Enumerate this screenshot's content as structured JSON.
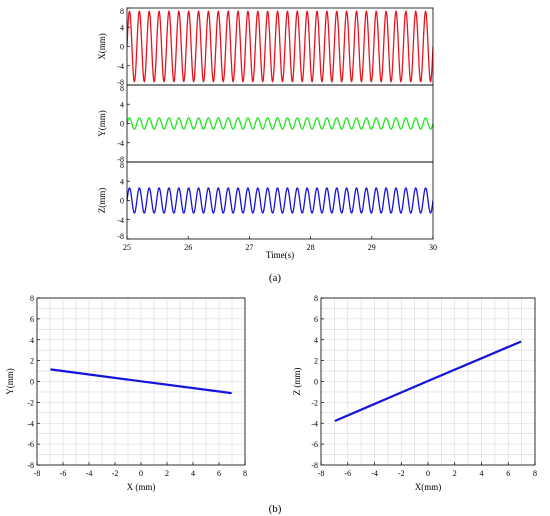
{
  "caption_a": "(a)",
  "caption_b": "(b)",
  "chart_data": [
    {
      "type": "line",
      "panel": "a-top",
      "ylabel": "X(mm)",
      "xlim": [
        25,
        30
      ],
      "ylim": [
        -8,
        8
      ],
      "yticks": [
        8,
        4,
        0,
        -4,
        -8
      ],
      "series": [
        {
          "color": "#e8141e",
          "amplitude": 7.3,
          "offset": 0,
          "cycles": 31
        }
      ]
    },
    {
      "type": "line",
      "panel": "a-middle",
      "ylabel": "Y(mm)",
      "xlim": [
        25,
        30
      ],
      "ylim": [
        -8,
        8
      ],
      "yticks": [
        8,
        4,
        0,
        -4,
        -8
      ],
      "series": [
        {
          "color": "#1ee61e",
          "amplitude": 1.15,
          "offset": 0,
          "cycles": 31
        }
      ]
    },
    {
      "type": "line",
      "panel": "a-bottom",
      "xlabel": "Time(s)",
      "ylabel": "Z(mm)",
      "xlim": [
        25,
        30
      ],
      "ylim": [
        -8,
        8
      ],
      "xticks": [
        25,
        26,
        27,
        28,
        29,
        30
      ],
      "yticks": [
        8,
        4,
        0,
        -4,
        -8
      ],
      "series": [
        {
          "color": "#1414dc",
          "amplitude": 2.6,
          "offset": 0,
          "cycles": 31
        }
      ]
    },
    {
      "type": "line",
      "panel": "b-left",
      "xlabel": "X (mm)",
      "ylabel": "Y(mm)",
      "xlim": [
        -8,
        8
      ],
      "ylim": [
        -8,
        8
      ],
      "xticks": [
        -8,
        -6,
        -4,
        -2,
        0,
        2,
        4,
        6,
        8
      ],
      "yticks": [
        8,
        6,
        4,
        2,
        0,
        -2,
        -4,
        -6,
        -8
      ],
      "grid": true,
      "series": [
        {
          "color": "#1414dc",
          "x": [
            -6.9,
            0,
            6.9
          ],
          "y": [
            1.15,
            0.02,
            -1.1
          ]
        }
      ]
    },
    {
      "type": "line",
      "panel": "b-right",
      "xlabel": "X(mm)",
      "ylabel": "Z (mm)",
      "xlim": [
        -8,
        8
      ],
      "ylim": [
        -8,
        8
      ],
      "xticks": [
        -8,
        -6,
        -4,
        -2,
        0,
        2,
        4,
        6,
        8
      ],
      "yticks": [
        8,
        6,
        4,
        2,
        0,
        -2,
        -4,
        -6,
        -8
      ],
      "grid": true,
      "series": [
        {
          "color": "#1414dc",
          "x": [
            -6.9,
            0,
            6.9
          ],
          "y": [
            -3.75,
            0.05,
            3.8
          ]
        }
      ]
    }
  ]
}
